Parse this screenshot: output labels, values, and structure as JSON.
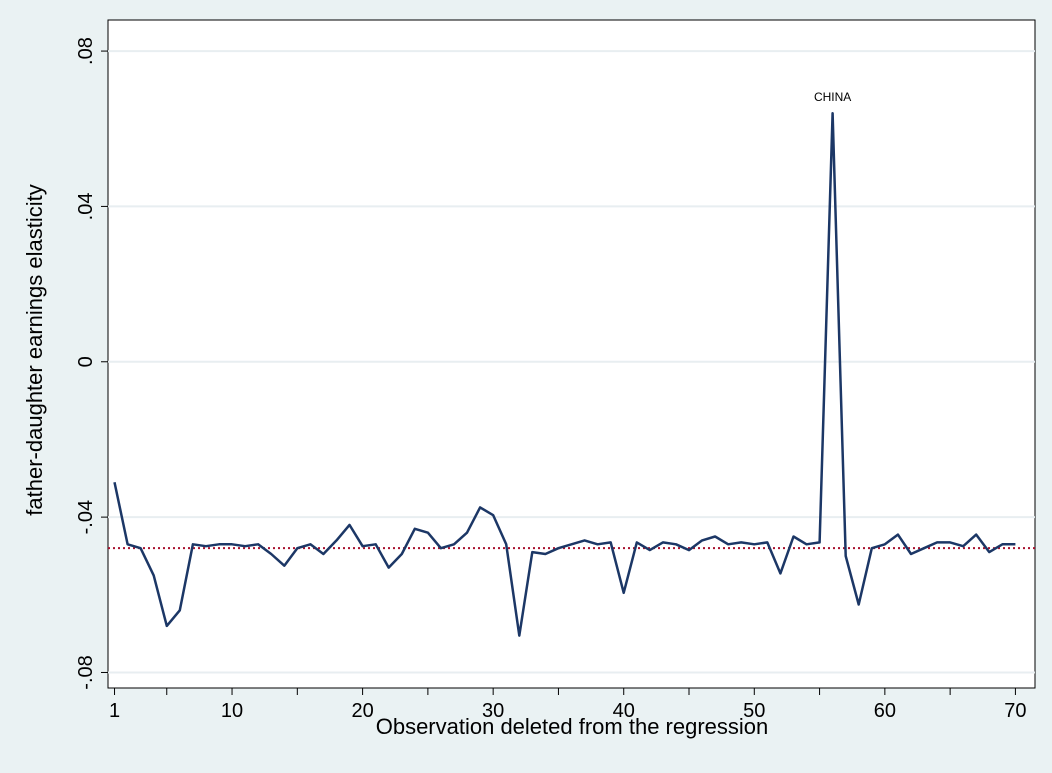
{
  "chart_data": {
    "type": "line",
    "title": "",
    "xlabel": "Observation deleted from the regression",
    "ylabel": "father-daughter earnings elasticity",
    "xlim": [
      0.5,
      71.5
    ],
    "ylim": [
      -0.084,
      0.088
    ],
    "x_major_ticks": [
      1,
      10,
      20,
      30,
      40,
      50,
      60,
      70
    ],
    "x_minor_ticks": [
      5,
      15,
      25,
      35,
      45,
      55,
      65
    ],
    "y_ticks": [
      {
        "value": -0.08,
        "label": "-.08"
      },
      {
        "value": -0.04,
        "label": "-.04"
      },
      {
        "value": 0,
        "label": "0"
      },
      {
        "value": 0.04,
        "label": ".04"
      },
      {
        "value": 0.08,
        "label": ".08"
      }
    ],
    "grid": "horizontal",
    "legend": "none",
    "series": [
      {
        "color": "#1c3766",
        "x": [
          1,
          2,
          3,
          4,
          5,
          6,
          7,
          8,
          9,
          10,
          11,
          12,
          13,
          14,
          15,
          16,
          17,
          18,
          19,
          20,
          21,
          22,
          23,
          24,
          25,
          26,
          27,
          28,
          29,
          30,
          31,
          32,
          33,
          34,
          35,
          36,
          37,
          38,
          39,
          40,
          41,
          42,
          43,
          44,
          45,
          46,
          47,
          48,
          49,
          50,
          51,
          52,
          53,
          54,
          55,
          56,
          57,
          58,
          59,
          60,
          61,
          62,
          63,
          64,
          65,
          66,
          67,
          68,
          69,
          70
        ],
        "y": [
          -0.031,
          -0.047,
          -0.048,
          -0.055,
          -0.068,
          -0.064,
          -0.047,
          -0.0475,
          -0.047,
          -0.047,
          -0.0475,
          -0.047,
          -0.0495,
          -0.0525,
          -0.048,
          -0.047,
          -0.0495,
          -0.046,
          -0.042,
          -0.0475,
          -0.047,
          -0.053,
          -0.0495,
          -0.043,
          -0.044,
          -0.048,
          -0.047,
          -0.044,
          -0.0375,
          -0.0395,
          -0.047,
          -0.0705,
          -0.049,
          -0.0495,
          -0.048,
          -0.047,
          -0.046,
          -0.047,
          -0.0465,
          -0.0595,
          -0.0465,
          -0.0485,
          -0.0465,
          -0.047,
          -0.0485,
          -0.046,
          -0.045,
          -0.047,
          -0.0465,
          -0.047,
          -0.0465,
          -0.0545,
          -0.045,
          -0.047,
          -0.0465,
          0.064,
          -0.05,
          -0.0625,
          -0.048,
          -0.047,
          -0.0445,
          -0.0495,
          -0.048,
          -0.0465,
          -0.0465,
          -0.0475,
          -0.0445,
          -0.049,
          -0.047,
          -0.047
        ]
      }
    ],
    "reference_line": {
      "y": -0.048,
      "color": "#a8102e",
      "style": "dotted"
    },
    "annotations": [
      {
        "text": "CHINA",
        "x": 56,
        "y": 0.064
      }
    ]
  }
}
